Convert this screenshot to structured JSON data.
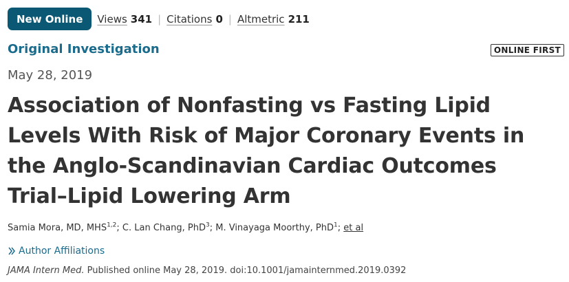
{
  "metrics": {
    "badge": "New Online",
    "views_label": "Views",
    "views_value": "341",
    "citations_label": "Citations",
    "citations_value": "0",
    "altmetric_label": "Altmetric",
    "altmetric_value": "211"
  },
  "article": {
    "type": "Original Investigation",
    "status_badge": "ONLINE FIRST",
    "date": "May 28, 2019",
    "title": "Association of Nonfasting vs Fasting Lipid Levels With Risk of Major Coronary Events in the Anglo-Scandinavian Cardiac Outcomes Trial–Lipid Lowering Arm"
  },
  "authors": [
    {
      "name": "Samia Mora, MD, MHS",
      "affiliations": "1,2",
      "sep": "; "
    },
    {
      "name": "C. Lan Chang, PhD",
      "affiliations": "3",
      "sep": "; "
    },
    {
      "name": "M. Vinayaga Moorthy, PhD",
      "affiliations": "1",
      "sep": "; "
    }
  ],
  "et_al": "et al",
  "affiliations_toggle": "Author Affiliations",
  "citation": {
    "journal": "JAMA Intern Med.",
    "text": "Published online May 28, 2019. doi:10.1001/jamainternmed.2019.0392"
  },
  "colors": {
    "badge_bg": "#0a5874",
    "accent": "#1b6b8c",
    "title": "#333333"
  }
}
